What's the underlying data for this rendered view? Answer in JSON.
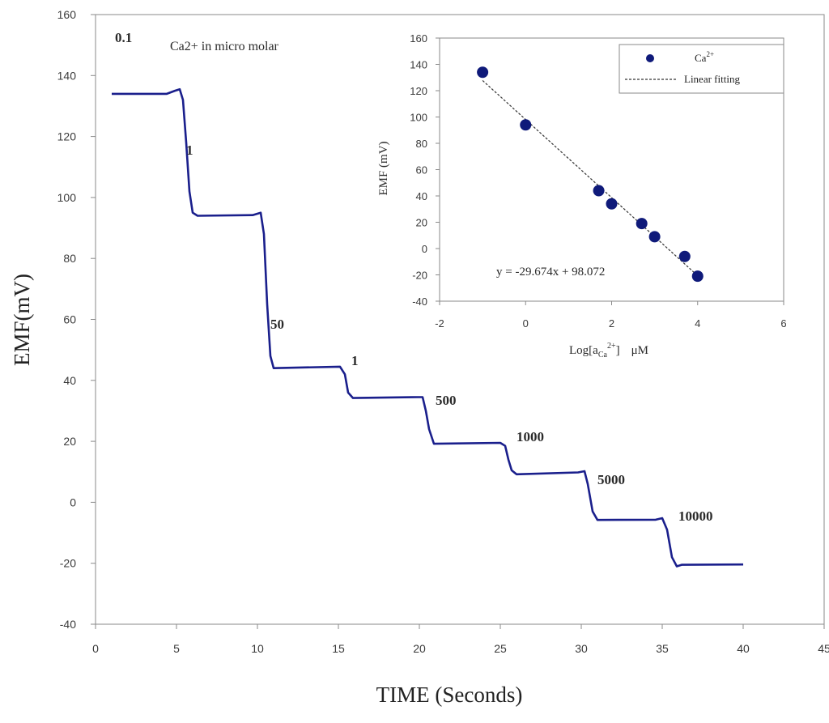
{
  "chart_data": [
    {
      "type": "line",
      "title": "",
      "xlabel": "TIME (Seconds)",
      "ylabel": "EMF(mV)",
      "xlim": [
        0,
        45
      ],
      "ylim": [
        -40,
        160
      ],
      "xticks": [
        "0",
        "5",
        "10",
        "15",
        "20",
        "25",
        "30",
        "35",
        "40",
        "45"
      ],
      "yticks": [
        "160",
        "140",
        "120",
        "100",
        "80",
        "60",
        "40",
        "20",
        "0",
        "-20",
        "-40"
      ],
      "grid": false,
      "color": "#1a1f8c",
      "series": [
        {
          "name": "EMF",
          "points": [
            [
              1,
              134
            ],
            [
              4.4,
              134
            ],
            [
              4.9,
              135
            ],
            [
              5.2,
              135.5
            ],
            [
              5.4,
              132
            ],
            [
              5.6,
              118
            ],
            [
              5.8,
              102
            ],
            [
              6.0,
              95
            ],
            [
              6.3,
              94
            ],
            [
              9.7,
              94.2
            ],
            [
              10.2,
              95
            ],
            [
              10.4,
              88
            ],
            [
              10.6,
              65
            ],
            [
              10.8,
              48
            ],
            [
              11.0,
              44
            ],
            [
              15.1,
              44.5
            ],
            [
              15.4,
              42
            ],
            [
              15.6,
              36
            ],
            [
              15.9,
              34.2
            ],
            [
              19.9,
              34.5
            ],
            [
              20.2,
              34.5
            ],
            [
              20.4,
              30
            ],
            [
              20.6,
              24
            ],
            [
              20.9,
              19.2
            ],
            [
              25.0,
              19.5
            ],
            [
              25.3,
              18.5
            ],
            [
              25.5,
              14
            ],
            [
              25.7,
              10.5
            ],
            [
              26.0,
              9.2
            ],
            [
              29.8,
              9.8
            ],
            [
              30.2,
              10.2
            ],
            [
              30.4,
              6
            ],
            [
              30.7,
              -3
            ],
            [
              31.0,
              -5.8
            ],
            [
              34.6,
              -5.7
            ],
            [
              35.0,
              -5.2
            ],
            [
              35.3,
              -9
            ],
            [
              35.6,
              -18
            ],
            [
              35.9,
              -21
            ],
            [
              36.2,
              -20.5
            ],
            [
              40.0,
              -20.4
            ]
          ]
        }
      ],
      "annotations": [
        {
          "text": "0.1",
          "x": 1.2,
          "y": 151
        },
        {
          "text": "1",
          "x": 5.6,
          "y": 114
        },
        {
          "text": "50",
          "x": 10.8,
          "y": 57
        },
        {
          "text": "1",
          "x": 15.8,
          "y": 45
        },
        {
          "text": "500",
          "x": 21.0,
          "y": 32
        },
        {
          "text": "1000",
          "x": 26.0,
          "y": 20
        },
        {
          "text": "5000",
          "x": 31.0,
          "y": 6
        },
        {
          "text": "10000",
          "x": 36.0,
          "y": -6
        }
      ],
      "note": "Ca2+ in micro molar"
    },
    {
      "type": "scatter",
      "title": "",
      "xlabel": "Log[aCa2+]   μM",
      "xlabel_parts": {
        "main": "Log[a",
        "sub": "Ca",
        "sup": "2+",
        "close": "]",
        "unit": "μM"
      },
      "ylabel": "EMF (mV)",
      "xlim": [
        -2,
        6
      ],
      "ylim": [
        -40,
        160
      ],
      "xticks": [
        "-2",
        "0",
        "2",
        "4",
        "6"
      ],
      "yticks": [
        "160",
        "140",
        "120",
        "100",
        "80",
        "60",
        "40",
        "20",
        "0",
        "-20",
        "-40"
      ],
      "grid": false,
      "legend_position": "top-right",
      "series": [
        {
          "name": "Ca2+",
          "legend_parts": {
            "main": "Ca",
            "sup": "2+"
          },
          "marker": "circle",
          "color": "#0f1a7a",
          "x": [
            -1,
            0,
            1.7,
            2,
            2.7,
            3,
            3.7,
            4
          ],
          "y": [
            134,
            94,
            44,
            34,
            19,
            9,
            -6,
            -21
          ]
        }
      ],
      "fit": {
        "name": "Linear fitting",
        "slope": -29.674,
        "intercept": 98.072,
        "x_range": [
          -1,
          4
        ],
        "style": "dashed",
        "equation_label": "y = -29.674x + 98.072"
      }
    }
  ]
}
